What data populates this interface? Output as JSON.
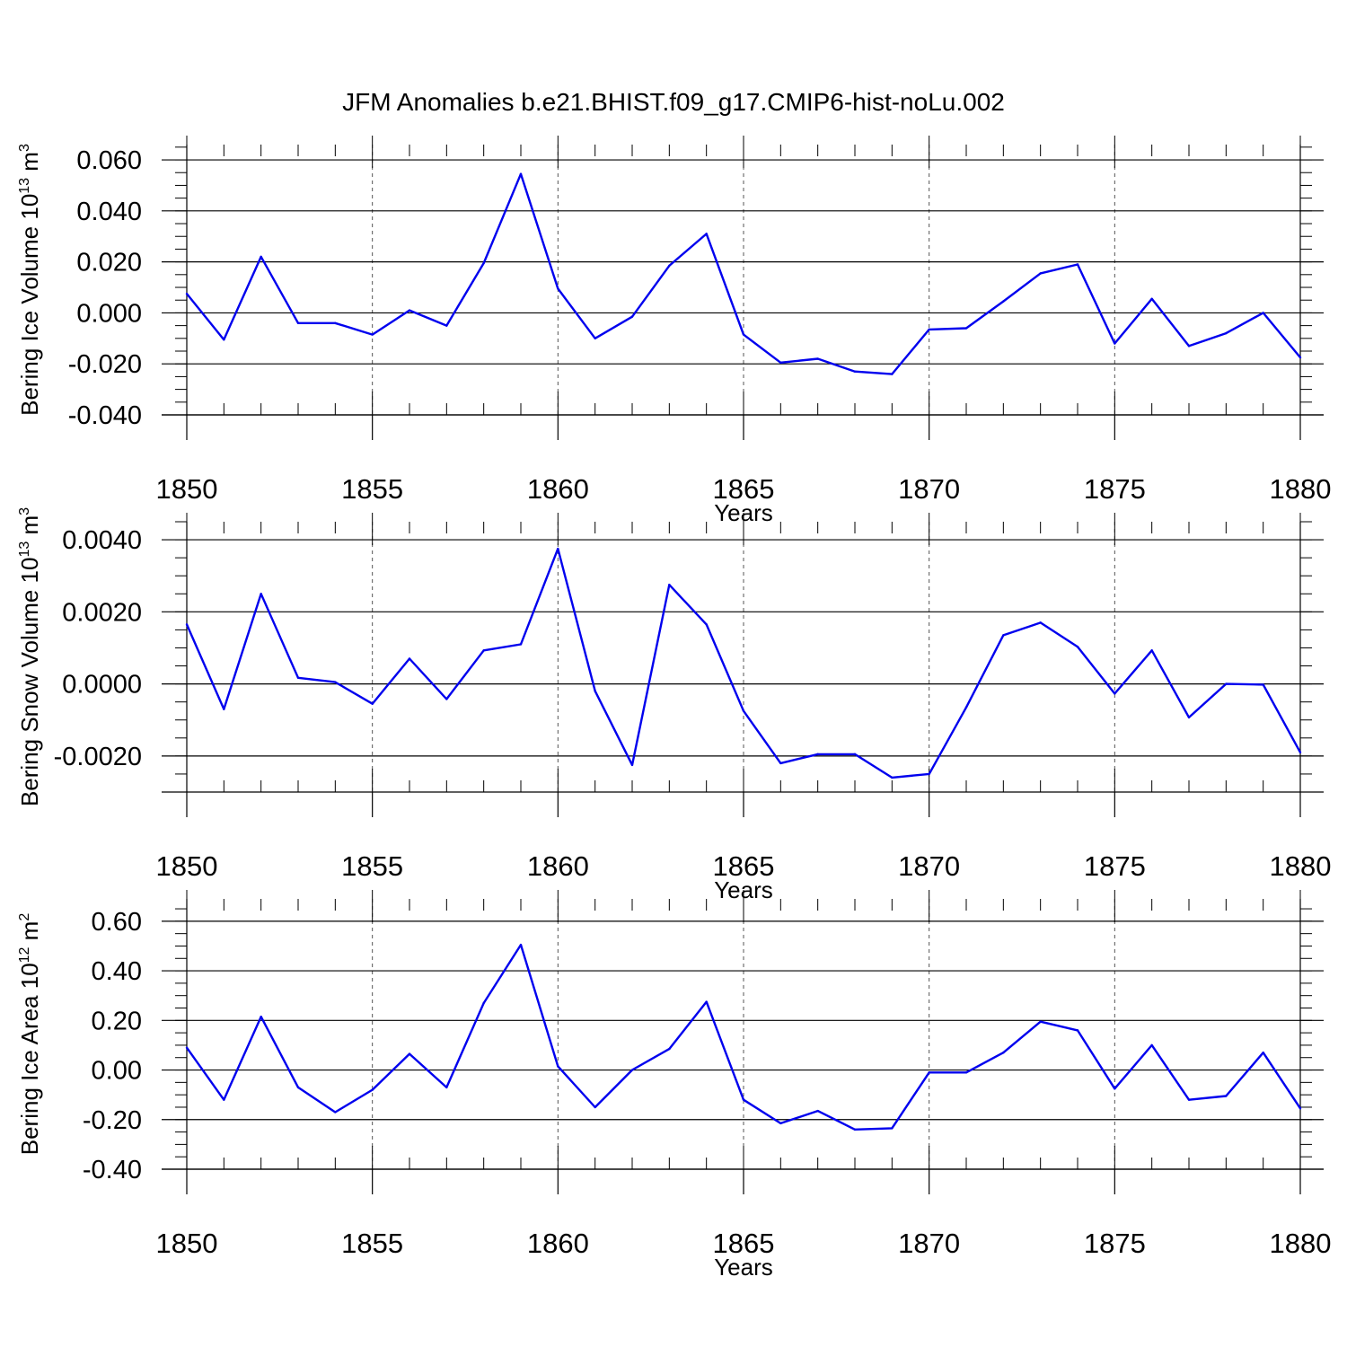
{
  "figure": {
    "title": "JFM Anomalies b.e21.BHIST.f09_g17.CMIP6-hist-noLu.002"
  },
  "chart_data": [
    {
      "type": "line",
      "ylabel": "Bering Ice Volume 10",
      "ylabel_exp": "13",
      "ylabel_unit": "m",
      "ylabel_unit_exp": "3",
      "xlabel": "Years",
      "xlim": [
        1850,
        1880
      ],
      "ylim": [
        -0.04,
        0.066
      ],
      "xticks": [
        1850,
        1855,
        1860,
        1865,
        1870,
        1875,
        1880
      ],
      "xtick_labels": [
        "1850",
        "1855",
        "1860",
        "1865",
        "1870",
        "1875",
        "1880"
      ],
      "yticks": [
        -0.04,
        -0.02,
        0.0,
        0.02,
        0.04,
        0.06
      ],
      "ytick_labels": [
        "-0.040",
        "-0.020",
        "0.000",
        "0.020",
        "0.040",
        "0.060"
      ],
      "y_minor_step": 0.005,
      "grid": "vertical-dashed",
      "line_color": "#0000ee",
      "x": [
        1850,
        1851,
        1852,
        1853,
        1854,
        1855,
        1856,
        1857,
        1858,
        1859,
        1860,
        1861,
        1862,
        1863,
        1864,
        1865,
        1866,
        1867,
        1868,
        1869,
        1870,
        1871,
        1872,
        1873,
        1874,
        1875,
        1876,
        1877,
        1878,
        1879,
        1880
      ],
      "values": [
        0.0075,
        -0.0105,
        0.022,
        -0.004,
        -0.004,
        -0.0085,
        0.001,
        -0.005,
        0.0195,
        0.0545,
        0.0095,
        -0.01,
        -0.0015,
        0.0185,
        0.031,
        -0.0085,
        -0.0195,
        -0.018,
        -0.023,
        -0.024,
        -0.0065,
        -0.006,
        0.0045,
        0.0155,
        0.019,
        -0.012,
        0.0055,
        -0.013,
        -0.008,
        0.0,
        -0.0175
      ]
    },
    {
      "type": "line",
      "ylabel": "Bering Snow Volume 10",
      "ylabel_exp": "13",
      "ylabel_unit": "m",
      "ylabel_unit_exp": "3",
      "xlabel": "Years",
      "xlim": [
        1850,
        1880
      ],
      "ylim": [
        -0.003,
        0.0045
      ],
      "xticks": [
        1850,
        1855,
        1860,
        1865,
        1870,
        1875,
        1880
      ],
      "xtick_labels": [
        "1850",
        "1855",
        "1860",
        "1865",
        "1870",
        "1875",
        "1880"
      ],
      "yticks": [
        -0.002,
        0.0,
        0.002,
        0.004
      ],
      "ytick_labels": [
        "-0.0020",
        "0.0000",
        "0.0020",
        "0.0040"
      ],
      "y_minor_step": 0.0005,
      "grid": "vertical-dashed",
      "line_color": "#0000ee",
      "x": [
        1850,
        1851,
        1852,
        1853,
        1854,
        1855,
        1856,
        1857,
        1858,
        1859,
        1860,
        1861,
        1862,
        1863,
        1864,
        1865,
        1866,
        1867,
        1868,
        1869,
        1870,
        1871,
        1872,
        1873,
        1874,
        1875,
        1876,
        1877,
        1878,
        1879,
        1880
      ],
      "values": [
        0.00165,
        -0.0007,
        0.0025,
        0.00017,
        5e-05,
        -0.00055,
        0.0007,
        -0.00042,
        0.00093,
        0.0011,
        0.00375,
        -0.0002,
        -0.00225,
        0.00275,
        0.00165,
        -0.00075,
        -0.0022,
        -0.00195,
        -0.00195,
        -0.0026,
        -0.0025,
        -0.00065,
        0.00135,
        0.0017,
        0.00103,
        -0.00027,
        0.00093,
        -0.00093,
        0.0,
        -2e-05,
        -0.0019
      ]
    },
    {
      "type": "line",
      "ylabel": "Bering Ice Area 10",
      "ylabel_exp": "12",
      "ylabel_unit": "m",
      "ylabel_unit_exp": "2",
      "xlabel": "Years",
      "xlim": [
        1850,
        1880
      ],
      "ylim": [
        -0.4,
        0.69
      ],
      "xticks": [
        1850,
        1855,
        1860,
        1865,
        1870,
        1875,
        1880
      ],
      "xtick_labels": [
        "1850",
        "1855",
        "1860",
        "1865",
        "1870",
        "1875",
        "1880"
      ],
      "yticks": [
        -0.4,
        -0.2,
        0.0,
        0.2,
        0.4,
        0.6
      ],
      "ytick_labels": [
        "-0.40",
        "-0.20",
        "0.00",
        "0.20",
        "0.40",
        "0.60"
      ],
      "y_minor_step": 0.05,
      "grid": "vertical-dashed",
      "line_color": "#0000ee",
      "x": [
        1850,
        1851,
        1852,
        1853,
        1854,
        1855,
        1856,
        1857,
        1858,
        1859,
        1860,
        1861,
        1862,
        1863,
        1864,
        1865,
        1866,
        1867,
        1868,
        1869,
        1870,
        1871,
        1872,
        1873,
        1874,
        1875,
        1876,
        1877,
        1878,
        1879,
        1880
      ],
      "values": [
        0.09,
        -0.12,
        0.215,
        -0.07,
        -0.17,
        -0.08,
        0.065,
        -0.07,
        0.27,
        0.505,
        0.015,
        -0.15,
        0.0,
        0.085,
        0.275,
        -0.12,
        -0.215,
        -0.165,
        -0.24,
        -0.235,
        -0.01,
        -0.01,
        0.07,
        0.195,
        0.16,
        -0.075,
        0.1,
        -0.12,
        -0.105,
        0.07,
        -0.155
      ]
    }
  ]
}
